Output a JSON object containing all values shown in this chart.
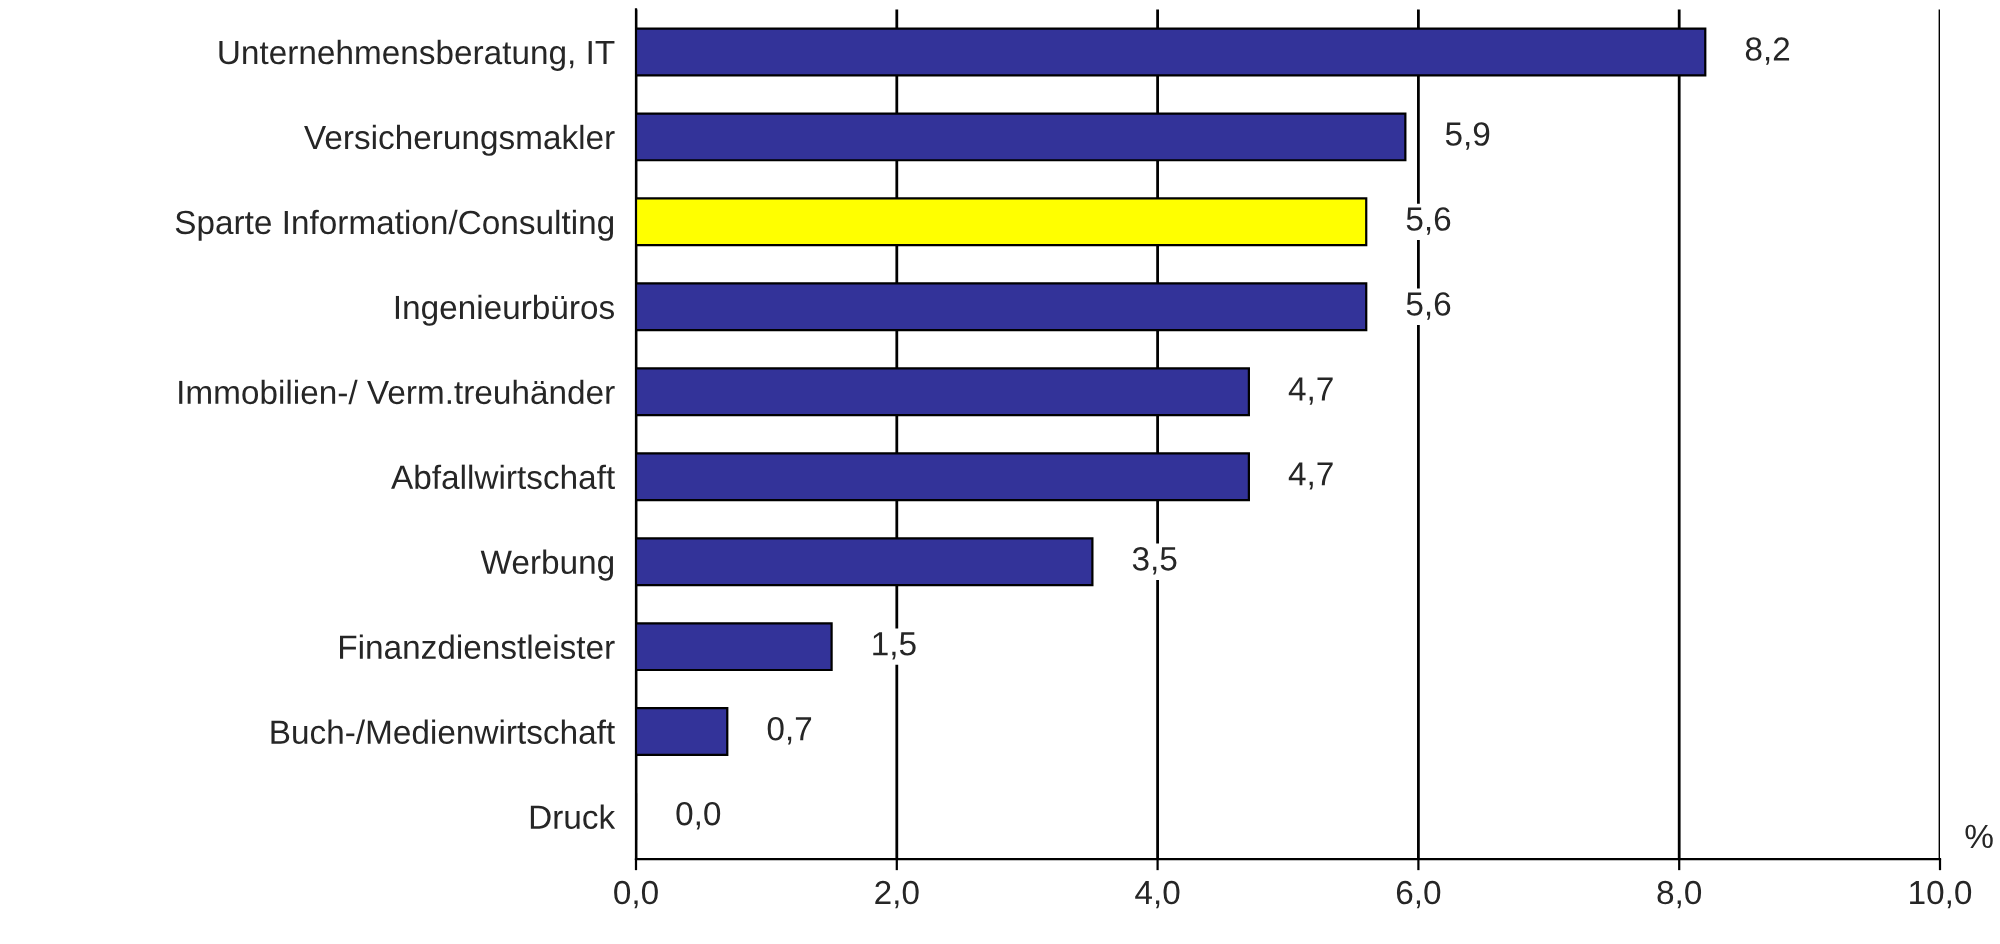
{
  "chart_data": {
    "type": "bar",
    "orientation": "horizontal",
    "xlabel": "%",
    "categories": [
      "Unternehmensberatung, IT",
      "Versicherungsmakler",
      "Sparte Information/Consulting",
      "Ingenieurbüros",
      "Immobilien-/ Verm.treuhänder",
      "Abfallwirtschaft",
      "Werbung",
      "Finanzdienstleister",
      "Buch-/Medienwirtschaft",
      "Druck"
    ],
    "values": [
      8.2,
      5.9,
      5.6,
      5.6,
      4.7,
      4.7,
      3.5,
      1.5,
      0.7,
      0.0
    ],
    "colors": [
      "#333399",
      "#333399",
      "#ffff00",
      "#333399",
      "#333399",
      "#333399",
      "#333399",
      "#333399",
      "#333399",
      "#333399"
    ],
    "value_labels": [
      "8,2",
      "5,9",
      "5,6",
      "5,6",
      "4,7",
      "4,7",
      "3,5",
      "1,5",
      "0,7",
      "0,0"
    ],
    "xlim": [
      0,
      10
    ],
    "xticks": [
      {
        "value": 0,
        "label": "0,0"
      },
      {
        "value": 2,
        "label": "2,0"
      },
      {
        "value": 4,
        "label": "4,0"
      },
      {
        "value": 6,
        "label": "6,0"
      },
      {
        "value": 8,
        "label": "8,0"
      },
      {
        "value": 10,
        "label": "10,0"
      }
    ],
    "grid": "x",
    "legend": false
  }
}
